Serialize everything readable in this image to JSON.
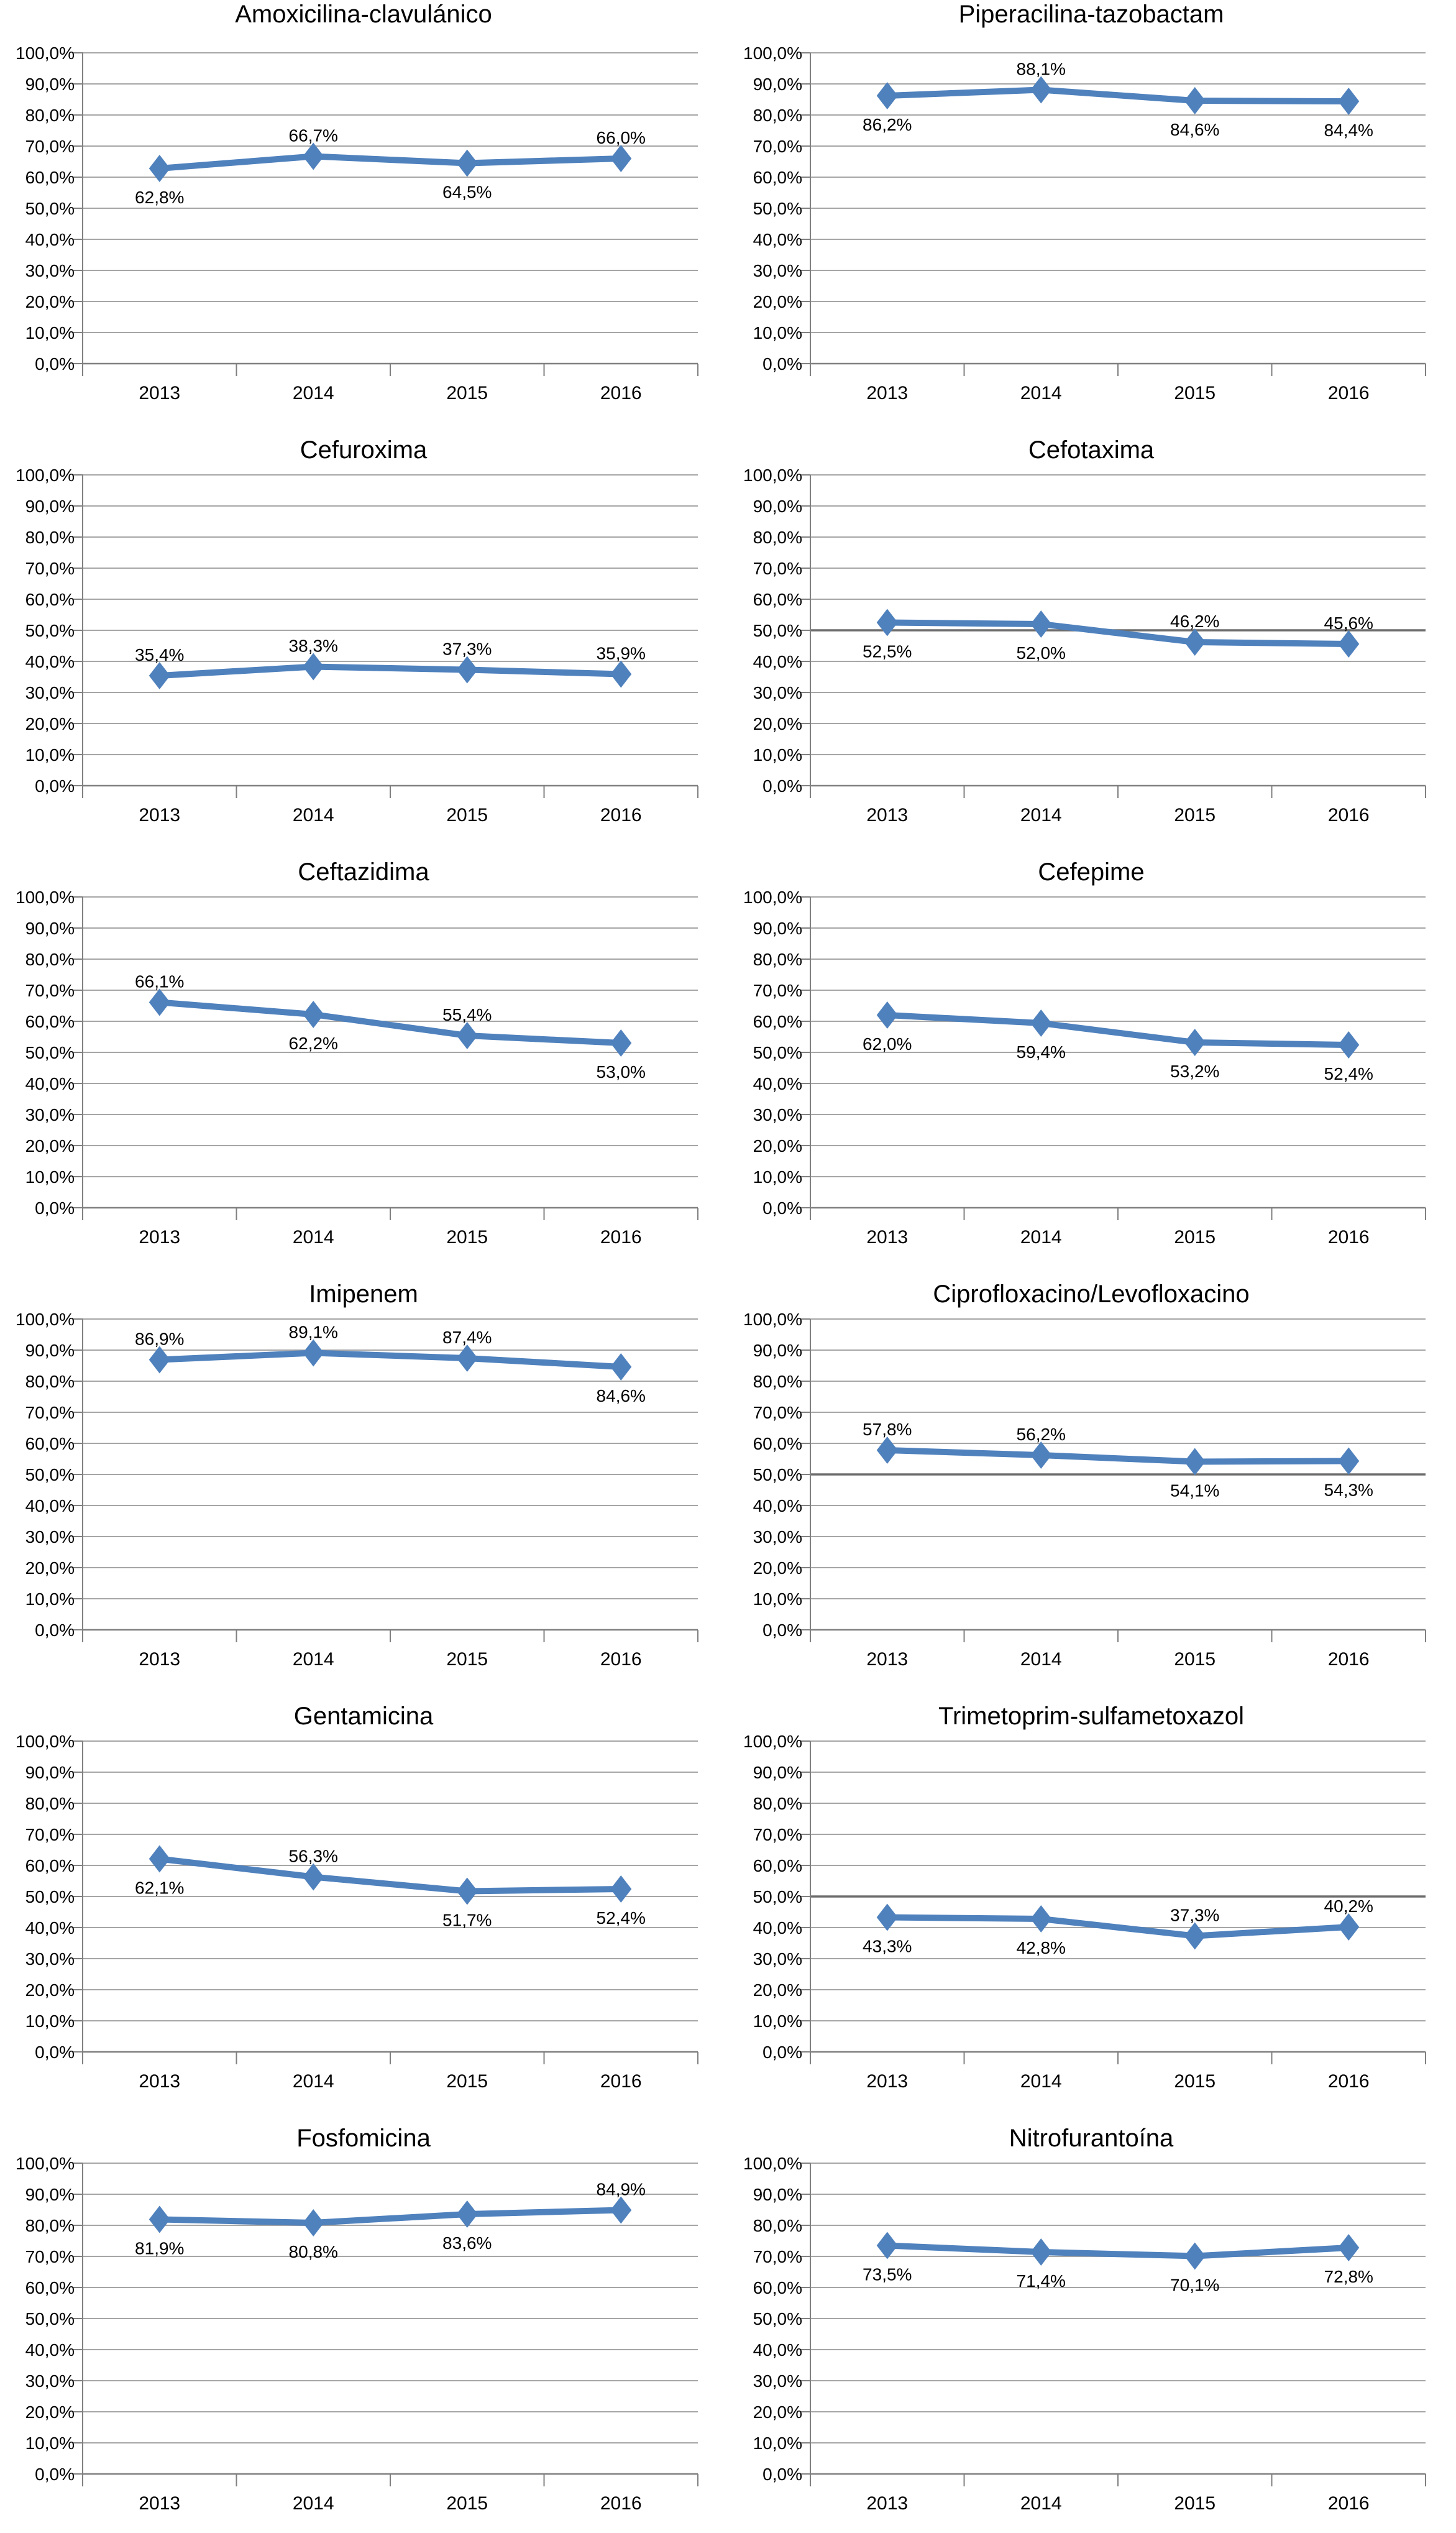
{
  "page": {
    "background": "#ffffff",
    "description_title": "Antibiotic susceptibility line charts 2013-2016"
  },
  "chart_defaults": {
    "type": "line",
    "categories": [
      "2013",
      "2014",
      "2015",
      "2016"
    ],
    "y_tick_labels": [
      "100,0%",
      "90,0%",
      "80,0%",
      "70,0%",
      "60,0%",
      "50,0%",
      "40,0%",
      "30,0%",
      "20,0%",
      "10,0%",
      "0,0%"
    ],
    "ylim": [
      0,
      100
    ],
    "grid": true,
    "legend": "none",
    "line_color": "#4F81BD",
    "marker": "diamond",
    "gridline_color": "#A6A6A6",
    "axis_color": "#808080"
  },
  "chart_data": [
    {
      "type": "line",
      "title": "Amoxicilina-clavulánico",
      "categories": [
        "2013",
        "2014",
        "2015",
        "2016"
      ],
      "values": [
        62.8,
        66.7,
        64.5,
        66.0
      ],
      "point_labels": [
        "62,8%",
        "66,7%",
        "64,5%",
        "66,0%"
      ],
      "label_pos": [
        "below",
        "above",
        "below",
        "above"
      ],
      "ylim": [
        0,
        100
      ],
      "ref_line_50": false
    },
    {
      "type": "line",
      "title": "Piperacilina-tazobactam",
      "categories": [
        "2013",
        "2014",
        "2015",
        "2016"
      ],
      "values": [
        86.2,
        88.1,
        84.6,
        84.4
      ],
      "point_labels": [
        "86,2%",
        "88,1%",
        "84,6%",
        "84,4%"
      ],
      "label_pos": [
        "below",
        "above",
        "below",
        "below"
      ],
      "ylim": [
        0,
        100
      ],
      "ref_line_50": false
    },
    {
      "type": "line",
      "title": "Cefuroxima",
      "categories": [
        "2013",
        "2014",
        "2015",
        "2016"
      ],
      "values": [
        35.4,
        38.3,
        37.3,
        35.9
      ],
      "point_labels": [
        "35,4%",
        "38,3%",
        "37,3%",
        "35,9%"
      ],
      "label_pos": [
        "above",
        "above",
        "above",
        "above"
      ],
      "ylim": [
        0,
        100
      ],
      "ref_line_50": false
    },
    {
      "type": "line",
      "title": "Cefotaxima",
      "categories": [
        "2013",
        "2014",
        "2015",
        "2016"
      ],
      "values": [
        52.5,
        52.0,
        46.2,
        45.6
      ],
      "point_labels": [
        "52,5%",
        "52,0%",
        "46,2%",
        "45,6%"
      ],
      "label_pos": [
        "below",
        "below",
        "above",
        "above"
      ],
      "ylim": [
        0,
        100
      ],
      "ref_line_50": true
    },
    {
      "type": "line",
      "title": "Ceftazidima",
      "categories": [
        "2013",
        "2014",
        "2015",
        "2016"
      ],
      "values": [
        66.1,
        62.2,
        55.4,
        53.0
      ],
      "point_labels": [
        "66,1%",
        "62,2%",
        "55,4%",
        "53,0%"
      ],
      "label_pos": [
        "above",
        "below",
        "above",
        "below"
      ],
      "ylim": [
        0,
        100
      ],
      "ref_line_50": false
    },
    {
      "type": "line",
      "title": "Cefepime",
      "categories": [
        "2013",
        "2014",
        "2015",
        "2016"
      ],
      "values": [
        62.0,
        59.4,
        53.2,
        52.4
      ],
      "point_labels": [
        "62,0%",
        "59,4%",
        "53,2%",
        "52,4%"
      ],
      "label_pos": [
        "below",
        "below",
        "below",
        "below"
      ],
      "ylim": [
        0,
        100
      ],
      "ref_line_50": false
    },
    {
      "type": "line",
      "title": "Imipenem",
      "categories": [
        "2013",
        "2014",
        "2015",
        "2016"
      ],
      "values": [
        86.9,
        89.1,
        87.4,
        84.6
      ],
      "point_labels": [
        "86,9%",
        "89,1%",
        "87,4%",
        "84,6%"
      ],
      "label_pos": [
        "above",
        "above",
        "above",
        "below"
      ],
      "ylim": [
        0,
        100
      ],
      "ref_line_50": false
    },
    {
      "type": "line",
      "title": "Ciprofloxacino/Levofloxacino",
      "categories": [
        "2013",
        "2014",
        "2015",
        "2016"
      ],
      "values": [
        57.8,
        56.2,
        54.1,
        54.3
      ],
      "point_labels": [
        "57,8%",
        "56,2%",
        "54,1%",
        "54,3%"
      ],
      "label_pos": [
        "above",
        "above",
        "below",
        "below"
      ],
      "ylim": [
        0,
        100
      ],
      "ref_line_50": true
    },
    {
      "type": "line",
      "title": "Gentamicina",
      "categories": [
        "2013",
        "2014",
        "2015",
        "2016"
      ],
      "values": [
        62.1,
        56.3,
        51.7,
        52.4
      ],
      "point_labels": [
        "62,1%",
        "56,3%",
        "51,7%",
        "52,4%"
      ],
      "label_pos": [
        "below",
        "above",
        "below",
        "below"
      ],
      "ylim": [
        0,
        100
      ],
      "ref_line_50": false
    },
    {
      "type": "line",
      "title": "Trimetoprim-sulfametoxazol",
      "categories": [
        "2013",
        "2014",
        "2015",
        "2016"
      ],
      "values": [
        43.3,
        42.8,
        37.3,
        40.2
      ],
      "point_labels": [
        "43,3%",
        "42,8%",
        "37,3%",
        "40,2%"
      ],
      "label_pos": [
        "below",
        "below",
        "above",
        "above"
      ],
      "ylim": [
        0,
        100
      ],
      "ref_line_50": true
    },
    {
      "type": "line",
      "title": "Fosfomicina",
      "categories": [
        "2013",
        "2014",
        "2015",
        "2016"
      ],
      "values": [
        81.9,
        80.8,
        83.6,
        84.9
      ],
      "point_labels": [
        "81,9%",
        "80,8%",
        "83,6%",
        "84,9%"
      ],
      "label_pos": [
        "below",
        "below",
        "below",
        "above"
      ],
      "ylim": [
        0,
        100
      ],
      "ref_line_50": false
    },
    {
      "type": "line",
      "title": "Nitrofurantoína",
      "categories": [
        "2013",
        "2014",
        "2015",
        "2016"
      ],
      "values": [
        73.5,
        71.4,
        70.1,
        72.8
      ],
      "point_labels": [
        "73,5%",
        "71,4%",
        "70,1%",
        "72,8%"
      ],
      "label_pos": [
        "below",
        "below",
        "below",
        "below"
      ],
      "ylim": [
        0,
        100
      ],
      "ref_line_50": false
    }
  ]
}
